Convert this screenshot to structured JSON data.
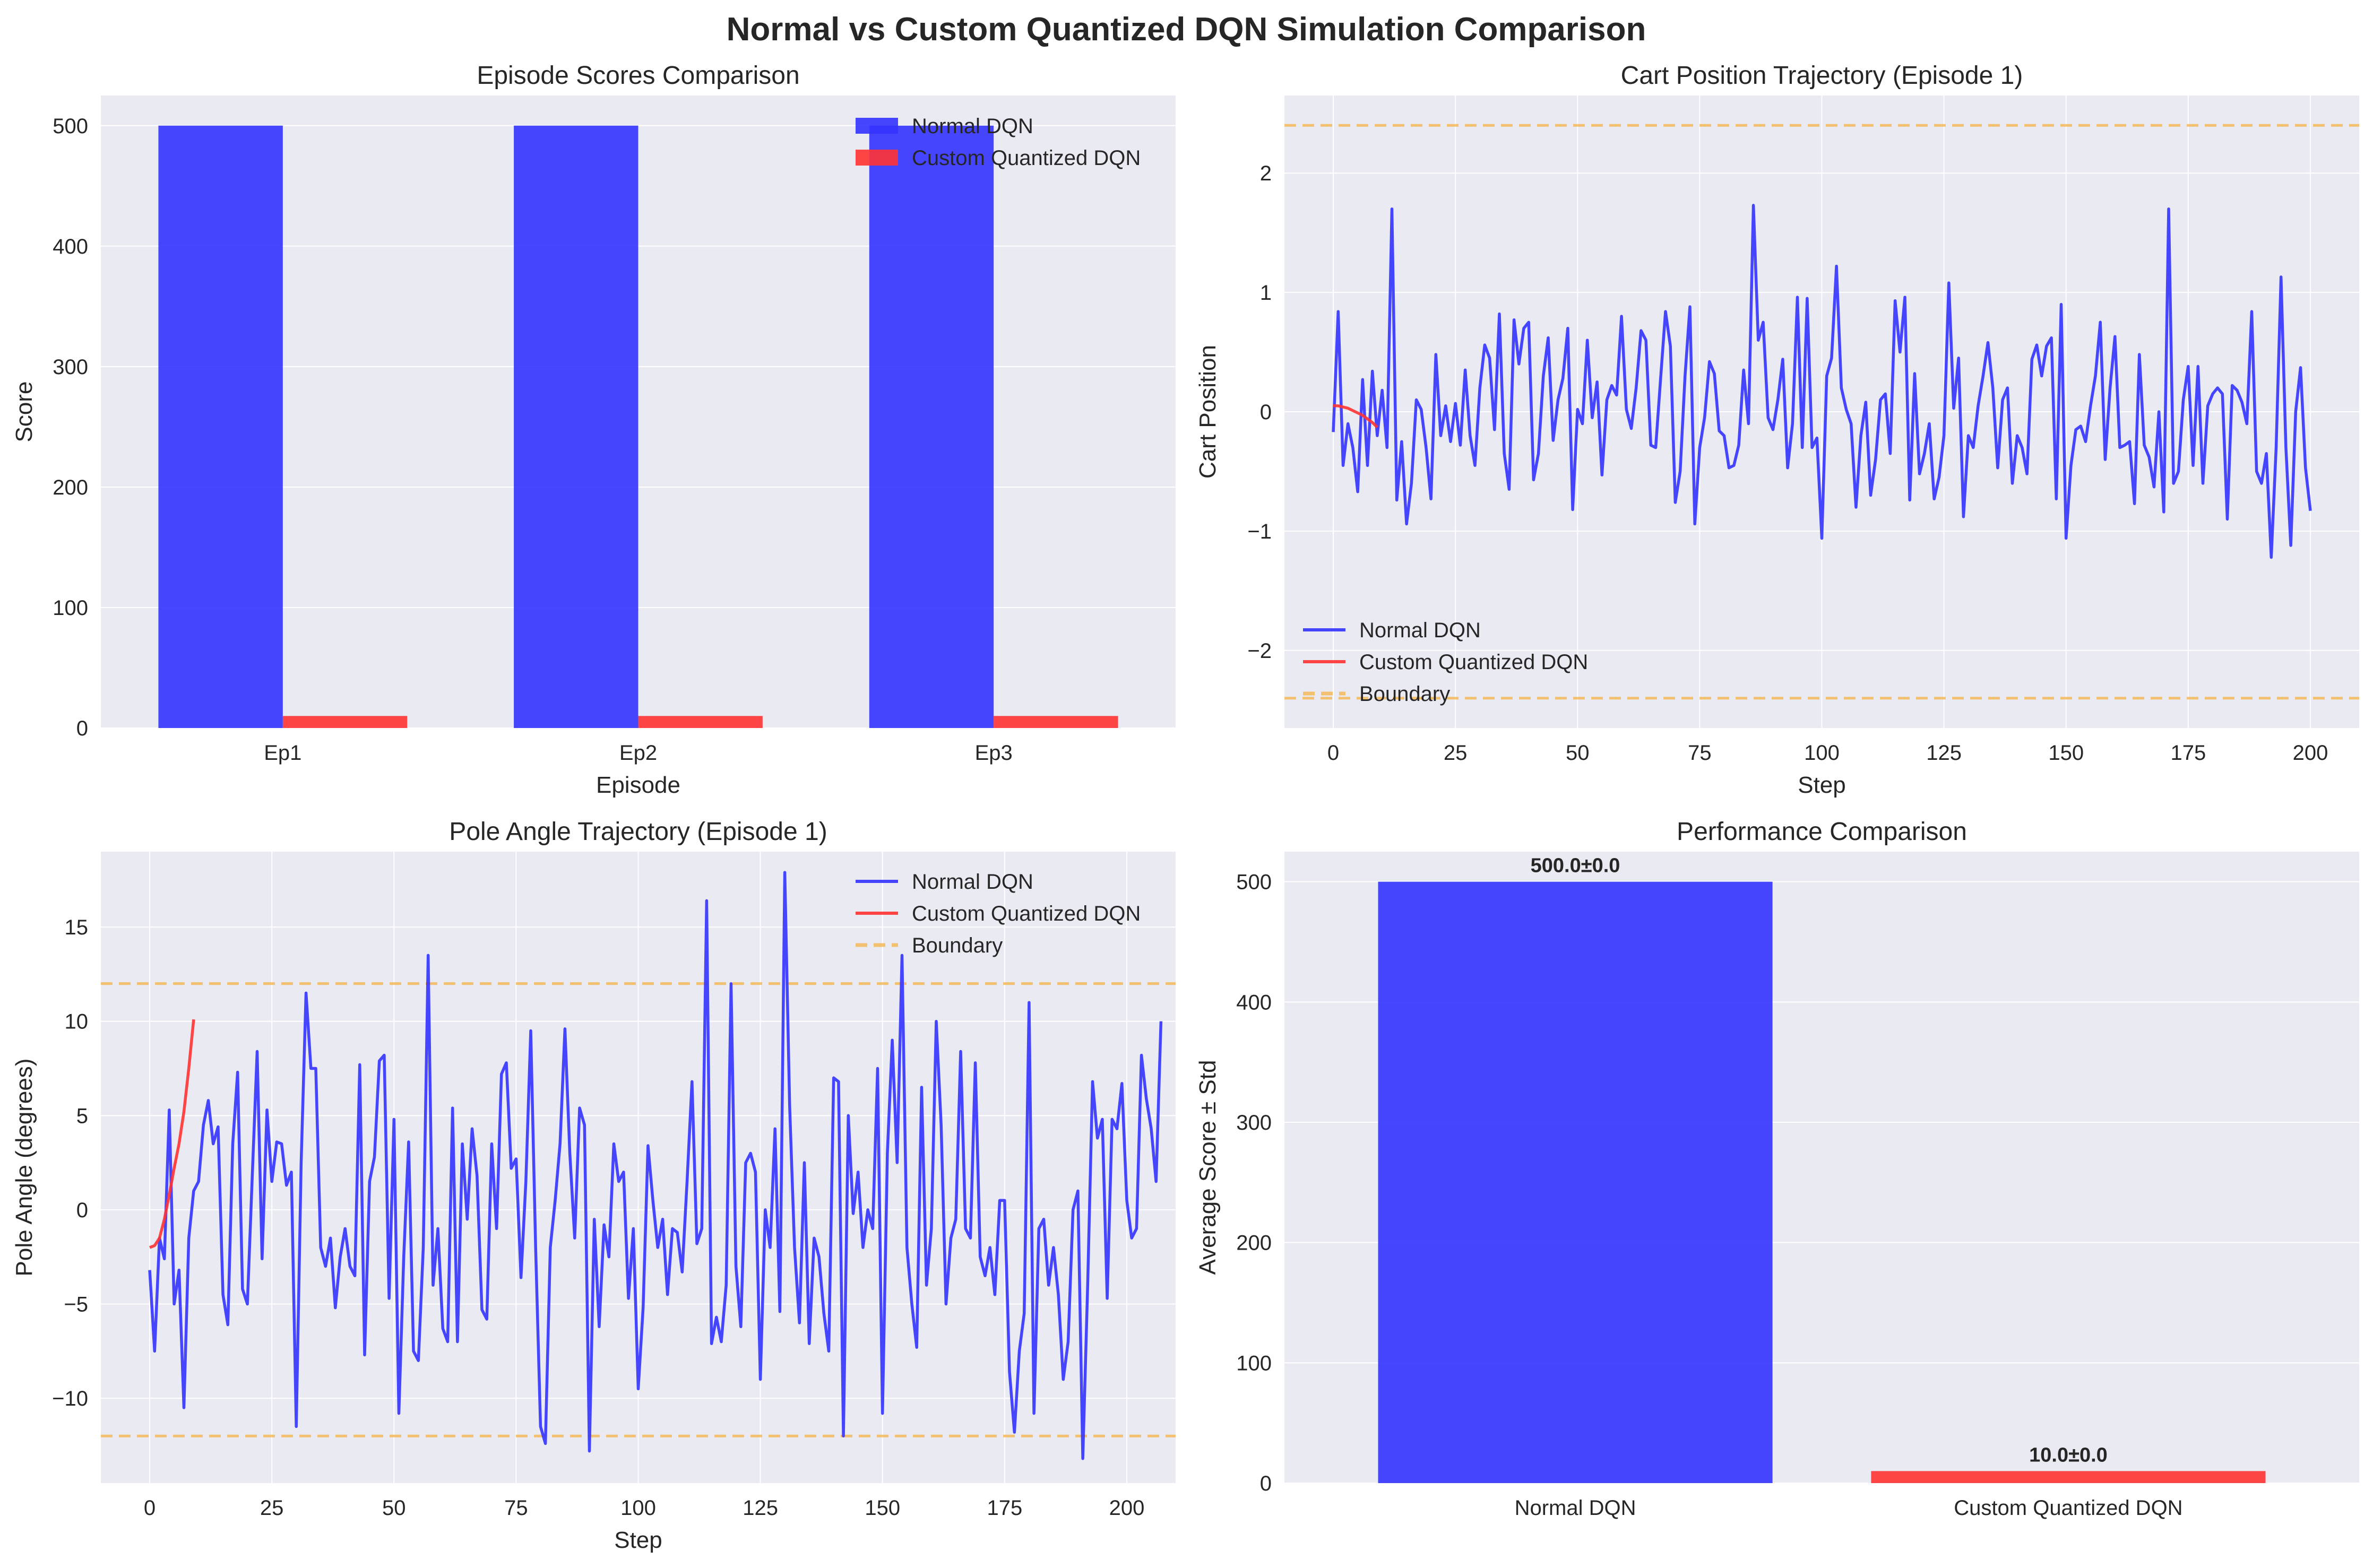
{
  "figure": {
    "title": "Normal vs Custom Quantized DQN Simulation Comparison"
  },
  "colors": {
    "normal": "#3333ff",
    "custom": "#ff3333",
    "boundary": "#f5b342",
    "panel_bg": "#eaeaf2",
    "grid": "#ffffff"
  },
  "chart_data": [
    {
      "type": "bar",
      "title": "Episode Scores Comparison",
      "xlabel": "Episode",
      "ylabel": "Score",
      "categories": [
        "Ep1",
        "Ep2",
        "Ep3"
      ],
      "series": [
        {
          "name": "Normal DQN",
          "values": [
            500,
            500,
            500
          ]
        },
        {
          "name": "Custom Quantized DQN",
          "values": [
            10,
            10,
            10
          ]
        }
      ],
      "ylim": [
        0,
        525
      ],
      "yticks": [
        0,
        100,
        200,
        300,
        400,
        500
      ],
      "legend": "top-right",
      "grid": true
    },
    {
      "type": "line",
      "title": "Cart Position Trajectory (Episode 1)",
      "xlabel": "Step",
      "ylabel": "Cart Position",
      "xlim": [
        -10,
        210
      ],
      "ylim": [
        -2.65,
        2.65
      ],
      "xticks": [
        0,
        25,
        50,
        75,
        100,
        125,
        150,
        175,
        200
      ],
      "yticks": [
        -2,
        -1,
        0,
        1,
        2
      ],
      "ytick_labels": [
        "−2",
        "−1",
        "0",
        "1",
        "2"
      ],
      "series": [
        {
          "name": "Normal DQN",
          "x_start": 0,
          "values": [
            -0.17,
            0.84,
            -0.45,
            -0.1,
            -0.3,
            -0.67,
            0.27,
            -0.45,
            0.34,
            -0.2,
            0.18,
            -0.3,
            1.7,
            -0.74,
            -0.25,
            -0.94,
            -0.6,
            0.1,
            0.02,
            -0.3,
            -0.73,
            0.48,
            -0.2,
            0.05,
            -0.25,
            0.07,
            -0.28,
            0.35,
            -0.2,
            -0.45,
            0.2,
            0.56,
            0.45,
            -0.15,
            0.82,
            -0.35,
            -0.65,
            0.77,
            0.4,
            0.7,
            0.75,
            -0.57,
            -0.35,
            0.3,
            0.62,
            -0.24,
            0.1,
            0.28,
            0.7,
            -0.82,
            0.02,
            -0.1,
            0.6,
            -0.05,
            0.25,
            -0.53,
            0.1,
            0.22,
            0.14,
            0.8,
            0.02,
            -0.14,
            0.2,
            0.68,
            0.6,
            -0.28,
            -0.3,
            0.28,
            0.84,
            0.55,
            -0.76,
            -0.5,
            0.3,
            0.88,
            -0.94,
            -0.3,
            -0.05,
            0.42,
            0.32,
            -0.16,
            -0.2,
            -0.47,
            -0.45,
            -0.28,
            0.35,
            -0.1,
            1.73,
            0.6,
            0.75,
            -0.05,
            -0.15,
            0.1,
            0.44,
            -0.47,
            -0.1,
            0.96,
            -0.3,
            0.95,
            -0.3,
            -0.22,
            -1.06,
            0.3,
            0.45,
            1.22,
            0.2,
            0.02,
            -0.1,
            -0.8,
            -0.2,
            0.08,
            -0.7,
            -0.4,
            0.1,
            0.15,
            -0.35,
            0.93,
            0.5,
            0.96,
            -0.74,
            0.32,
            -0.52,
            -0.35,
            -0.1,
            -0.73,
            -0.55,
            -0.2,
            1.08,
            0.03,
            0.45,
            -0.88,
            -0.2,
            -0.3,
            0.05,
            0.3,
            0.58,
            0.2,
            -0.47,
            0.1,
            0.2,
            -0.6,
            -0.2,
            -0.3,
            -0.52,
            0.44,
            0.56,
            0.3,
            0.55,
            0.62,
            -0.73,
            0.9,
            -1.06,
            -0.45,
            -0.15,
            -0.12,
            -0.25,
            0.05,
            0.3,
            0.75,
            -0.4,
            0.2,
            0.63,
            -0.3,
            -0.28,
            -0.25,
            -0.77,
            0.48,
            -0.28,
            -0.38,
            -0.63,
            0.0,
            -0.84,
            1.7,
            -0.6,
            -0.5,
            0.1,
            0.38,
            -0.45,
            0.38,
            -0.6,
            0.05,
            0.15,
            0.2,
            0.15,
            -0.9,
            0.22,
            0.18,
            0.08,
            -0.1,
            0.84,
            -0.5,
            -0.6,
            -0.35,
            -1.22,
            -0.3,
            1.13,
            -0.3,
            -1.12,
            0.0,
            0.37,
            -0.47,
            -0.83
          ]
        },
        {
          "name": "Custom Quantized DQN",
          "x_start": 0,
          "values": [
            0.05,
            0.05,
            0.04,
            0.03,
            0.01,
            -0.01,
            -0.03,
            -0.06,
            -0.09,
            -0.13
          ]
        }
      ],
      "hlines": [
        {
          "name": "Boundary",
          "values": [
            2.4,
            -2.4
          ]
        }
      ],
      "legend": "bottom-left",
      "grid": true
    },
    {
      "type": "line",
      "title": "Pole Angle Trajectory (Episode 1)",
      "xlabel": "Step",
      "ylabel": "Pole Angle (degrees)",
      "xlim": [
        -10,
        210
      ],
      "ylim": [
        -14.5,
        19
      ],
      "xticks": [
        0,
        25,
        50,
        75,
        100,
        125,
        150,
        175,
        200
      ],
      "yticks": [
        -10,
        -5,
        0,
        5,
        10,
        15
      ],
      "ytick_labels": [
        "−10",
        "−5",
        "0",
        "5",
        "10",
        "15"
      ],
      "series": [
        {
          "name": "Normal DQN",
          "x_start": 0,
          "values": [
            -3.2,
            -7.5,
            -1.5,
            -2.6,
            5.3,
            -5.0,
            -3.2,
            -10.5,
            -1.5,
            1.0,
            1.5,
            4.5,
            5.8,
            3.5,
            4.4,
            -4.5,
            -6.1,
            3.5,
            7.3,
            -4.2,
            -5.0,
            1.8,
            8.4,
            -2.6,
            5.3,
            1.5,
            3.6,
            3.5,
            1.3,
            2.0,
            -11.5,
            2.5,
            11.5,
            7.5,
            7.5,
            -2.0,
            -3.0,
            -1.5,
            -5.2,
            -2.5,
            -1.0,
            -3.0,
            -3.5,
            7.7,
            -7.7,
            1.5,
            2.8,
            7.9,
            8.2,
            -4.7,
            4.8,
            -10.8,
            -2.5,
            3.6,
            -7.5,
            -8.0,
            -2.0,
            13.5,
            -4.0,
            -1.0,
            -6.3,
            -7.0,
            5.4,
            -7.0,
            3.5,
            -0.5,
            4.3,
            1.8,
            -5.3,
            -5.8,
            3.5,
            -1.0,
            7.2,
            7.8,
            2.2,
            2.7,
            -3.6,
            1.5,
            9.5,
            -2.0,
            -11.5,
            -12.4,
            -2.0,
            0.5,
            3.5,
            9.6,
            3.0,
            -1.5,
            5.4,
            4.5,
            -12.8,
            -0.5,
            -6.2,
            -0.8,
            -2.5,
            3.5,
            1.5,
            2.0,
            -4.7,
            -1.0,
            -9.5,
            -5.2,
            3.4,
            0.5,
            -2.0,
            -0.5,
            -4.5,
            -1.0,
            -1.2,
            -3.3,
            1.5,
            6.8,
            -1.8,
            -1.0,
            16.4,
            -7.1,
            -5.7,
            -7.0,
            -4.0,
            12.0,
            -3.0,
            -6.2,
            2.5,
            3.0,
            2.0,
            -9.0,
            0.0,
            -2.0,
            4.3,
            -5.4,
            17.9,
            5.5,
            -2.0,
            -6.0,
            2.5,
            -7.1,
            -1.5,
            -2.5,
            -5.5,
            -7.5,
            7.0,
            6.8,
            -12.0,
            5.0,
            -0.2,
            2.0,
            -2.0,
            0.0,
            -1.0,
            7.5,
            -10.8,
            3.0,
            9.0,
            2.5,
            13.5,
            -2.0,
            -5.0,
            -7.3,
            6.5,
            -4.0,
            -1.0,
            10.0,
            4.5,
            -5.0,
            -1.5,
            -0.5,
            8.4,
            -1.0,
            -1.5,
            7.8,
            -2.5,
            -3.5,
            -2.0,
            -4.5,
            0.5,
            0.5,
            -8.6,
            -11.8,
            -7.5,
            -5.5,
            11.0,
            -10.8,
            -1.0,
            -0.5,
            -4.0,
            -2.0,
            -4.5,
            -9.0,
            -7.0,
            0.0,
            1.0,
            -13.2,
            -4.0,
            6.8,
            3.8,
            4.8,
            -4.7,
            4.8,
            4.3,
            6.7,
            0.5,
            -1.5,
            -1.0,
            8.2,
            5.9,
            4.3,
            1.5,
            10.0
          ]
        },
        {
          "name": "Custom Quantized DQN",
          "x_start": 0,
          "values": [
            -2.0,
            -1.9,
            -1.5,
            -0.5,
            0.8,
            2.2,
            3.5,
            5.2,
            7.5,
            10.1
          ]
        }
      ],
      "hlines": [
        {
          "name": "Boundary",
          "values": [
            12,
            -12
          ]
        }
      ],
      "legend": "top-right",
      "grid": true
    },
    {
      "type": "bar",
      "title": "Performance Comparison",
      "xlabel": "",
      "ylabel": "Average Score ± Std",
      "categories": [
        "Normal DQN",
        "Custom Quantized DQN"
      ],
      "values": [
        500.0,
        10.0
      ],
      "std": [
        0.0,
        0.0
      ],
      "data_labels": [
        "500.0±0.0",
        "10.0±0.0"
      ],
      "ylim": [
        0,
        525
      ],
      "yticks": [
        0,
        100,
        200,
        300,
        400,
        500
      ],
      "grid": true
    }
  ]
}
